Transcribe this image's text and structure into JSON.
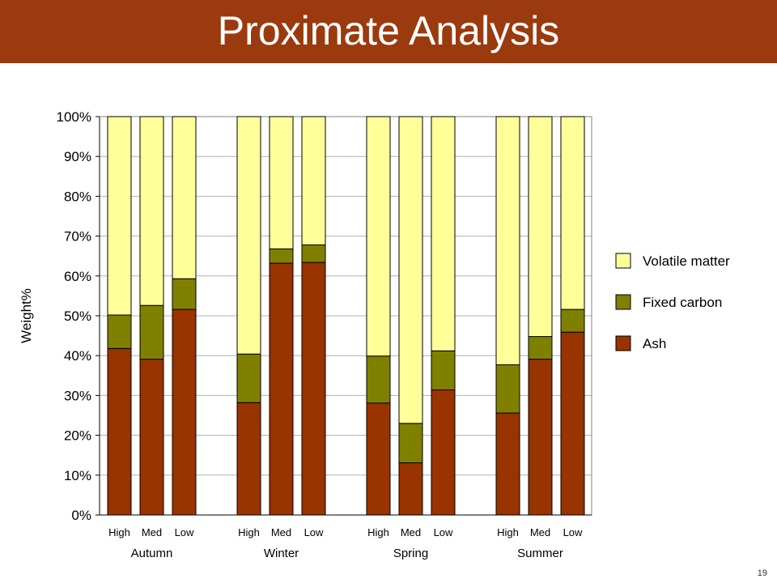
{
  "slide": {
    "title": "Proximate Analysis",
    "page_number": "19"
  },
  "colors": {
    "title_bar": "#9B3A0E",
    "ash": "#993300",
    "fixed_carbon": "#808000",
    "volatile_matter": "#FFFF99"
  },
  "chart_data": {
    "type": "bar",
    "stacked": true,
    "ylabel": "Weight%",
    "ylim": [
      0,
      100
    ],
    "yticks": [
      "0%",
      "10%",
      "20%",
      "30%",
      "40%",
      "50%",
      "60%",
      "70%",
      "80%",
      "90%",
      "100%"
    ],
    "grid": true,
    "legend_position": "right",
    "groups": [
      {
        "label": "Autumn",
        "categories": [
          "High",
          "Med",
          "Low"
        ]
      },
      {
        "label": "Winter",
        "categories": [
          "High",
          "Med",
          "Low"
        ]
      },
      {
        "label": "Spring",
        "categories": [
          "High",
          "Med",
          "Low"
        ]
      },
      {
        "label": "Summer",
        "categories": [
          "High",
          "Med",
          "Low"
        ]
      }
    ],
    "legend_order": [
      "Volatile matter",
      "Fixed carbon",
      "Ash"
    ],
    "series": [
      {
        "name": "Ash",
        "color": "#993300",
        "values": [
          41.8,
          39.1,
          51.6,
          28.2,
          63.2,
          63.4,
          28.1,
          13.1,
          31.4,
          25.6,
          39.1,
          45.9
        ]
      },
      {
        "name": "Fixed carbon",
        "color": "#808000",
        "values": [
          8.4,
          13.5,
          7.7,
          12.2,
          3.6,
          4.4,
          11.8,
          9.9,
          9.8,
          12.1,
          5.7,
          5.7
        ]
      },
      {
        "name": "Volatile matter",
        "color": "#FFFF99",
        "values": [
          49.8,
          47.4,
          40.7,
          59.6,
          33.2,
          32.2,
          60.1,
          77.0,
          58.8,
          62.3,
          55.2,
          48.4
        ]
      }
    ]
  }
}
